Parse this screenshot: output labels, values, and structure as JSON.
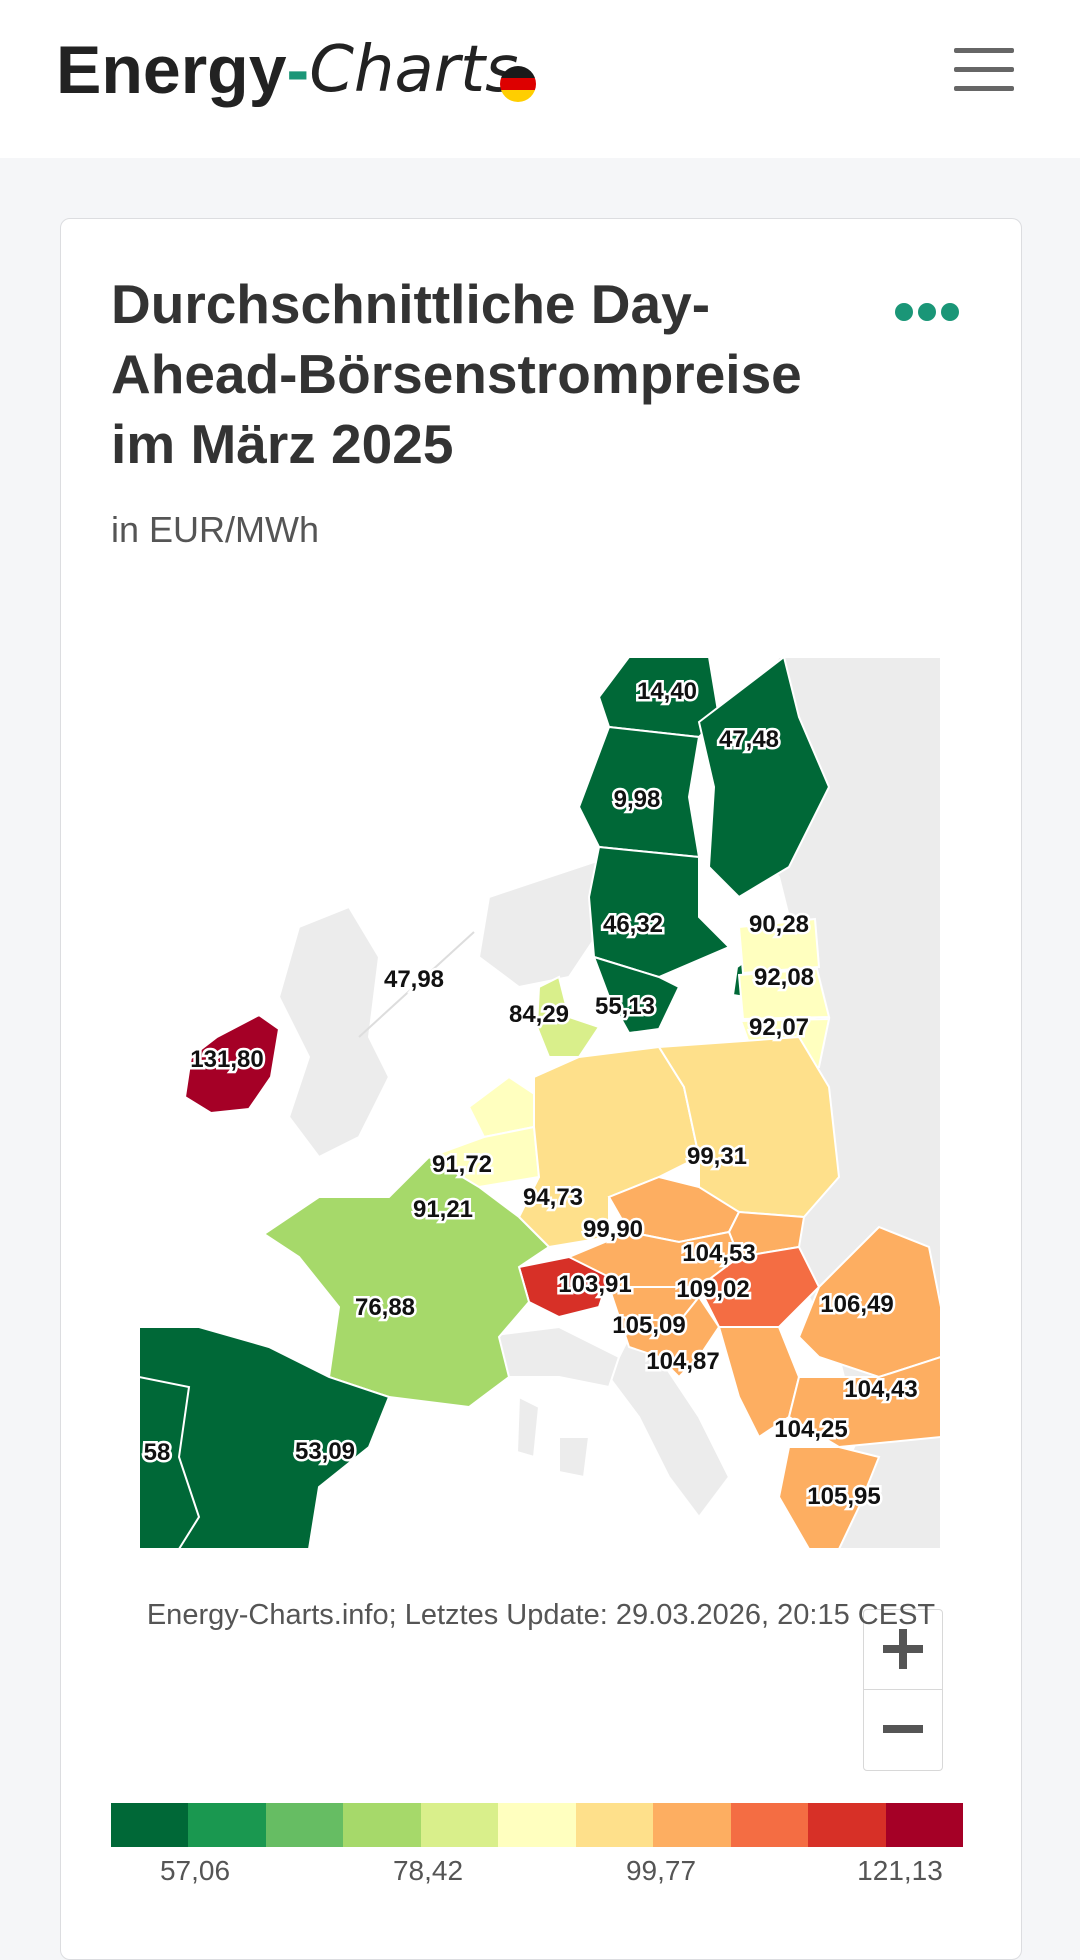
{
  "header": {
    "logo": {
      "part1": "Energy",
      "part2": "-",
      "part3": "Charts"
    },
    "menu_icon": "hamburger-icon",
    "flag_icon": "germany-flag-icon"
  },
  "card": {
    "title": "Durchschnittliche Day-Ahead-Börsenstrompreise im März 2025",
    "subtitle": "in EUR/MWh",
    "more_icon": "more-dots-icon",
    "source": "Energy-Charts.info; Letztes Update: 29.03.2026, 20:15 CEST"
  },
  "map": {
    "labels": [
      {
        "name": "se1",
        "text": "14,40"
      },
      {
        "name": "fi",
        "text": "47,48"
      },
      {
        "name": "se2",
        "text": "9,98"
      },
      {
        "name": "se3",
        "text": "46,32"
      },
      {
        "name": "ee",
        "text": "90,28"
      },
      {
        "name": "no",
        "text": "47,98"
      },
      {
        "name": "lv",
        "text": "92,08"
      },
      {
        "name": "dk",
        "text": "84,29"
      },
      {
        "name": "se4",
        "text": "55,13"
      },
      {
        "name": "lt",
        "text": "92,07"
      },
      {
        "name": "ie",
        "text": "131,80"
      },
      {
        "name": "nl",
        "text": "91,72"
      },
      {
        "name": "pl",
        "text": "99,31"
      },
      {
        "name": "be",
        "text": "91,21"
      },
      {
        "name": "de",
        "text": "94,73"
      },
      {
        "name": "cz",
        "text": "99,90"
      },
      {
        "name": "sk",
        "text": "104,53"
      },
      {
        "name": "at",
        "text": "103,91"
      },
      {
        "name": "hu",
        "text": "109,02"
      },
      {
        "name": "ro",
        "text": "106,49"
      },
      {
        "name": "fr",
        "text": "76,88"
      },
      {
        "name": "si",
        "text": "105,09"
      },
      {
        "name": "hr",
        "text": "104,87"
      },
      {
        "name": "bg",
        "text": "104,43"
      },
      {
        "name": "rs",
        "text": "104,25"
      },
      {
        "name": "pt",
        "text": "58"
      },
      {
        "name": "es",
        "text": "53,09"
      },
      {
        "name": "gr",
        "text": "105,95"
      }
    ],
    "zoom_in_icon": "plus-icon",
    "zoom_out_icon": "minus-icon"
  },
  "legend": {
    "colors": [
      "#006837",
      "#1a9850",
      "#66bd63",
      "#a6d96a",
      "#d9ef8b",
      "#ffffbf",
      "#fee08b",
      "#fdae61",
      "#f46d43",
      "#d73027",
      "#a50026"
    ],
    "ticks": [
      "57,06",
      "78,42",
      "99,77",
      "121,13"
    ]
  }
}
